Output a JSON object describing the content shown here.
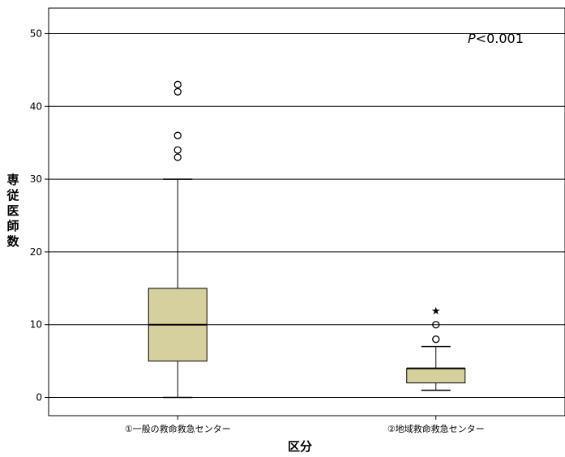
{
  "chart_data": {
    "type": "box",
    "title": "",
    "xlabel": "区分",
    "ylabel": "専従医師数",
    "ylim": [
      -2.5,
      53.5
    ],
    "yticks": [
      0,
      10,
      20,
      30,
      40,
      50
    ],
    "grid": true,
    "annotation": {
      "p_symbol": "P",
      "p_rest": "<0.001"
    },
    "box_color": "#d6d09e",
    "categories": [
      "①一般の救命救急センター",
      "②地域救命救急センター"
    ],
    "boxes": [
      {
        "category": "①一般の救命救急センター",
        "whisker_low": 0,
        "q1": 5,
        "median": 10,
        "q3": 15,
        "whisker_high": 30,
        "outliers": [
          33,
          34,
          36,
          42,
          43
        ],
        "extremes": []
      },
      {
        "category": "②地域救命救急センター",
        "whisker_low": 1,
        "q1": 2,
        "median": 4,
        "q3": 4,
        "whisker_high": 7,
        "outliers": [
          8,
          10
        ],
        "extremes": [
          12
        ]
      }
    ]
  }
}
